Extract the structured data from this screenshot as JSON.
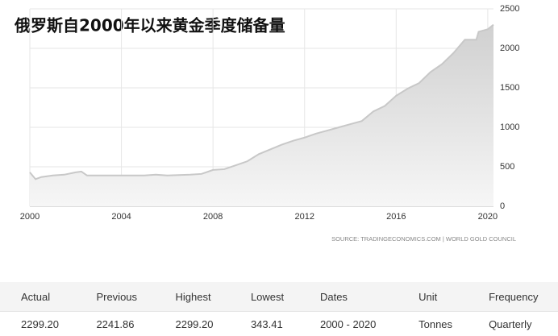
{
  "chart_data": {
    "type": "area",
    "title": "俄罗斯自2000年以来黄金季度储备量",
    "source": "SOURCE: TRADINGECONOMICS.COM | WORLD GOLD COUNCIL",
    "x": [
      2000,
      2000.25,
      2000.5,
      2001,
      2001.5,
      2002,
      2002.25,
      2002.5,
      2003,
      2004,
      2005,
      2005.5,
      2006,
      2007,
      2007.5,
      2008,
      2008.5,
      2009,
      2009.5,
      2010,
      2010.5,
      2011,
      2011.5,
      2012,
      2012.5,
      2013,
      2013.5,
      2014,
      2014.5,
      2015,
      2015.5,
      2016,
      2016.5,
      2017,
      2017.5,
      2018,
      2018.5,
      2019,
      2019.5,
      2019.6,
      2020,
      2020.25
    ],
    "series": [
      {
        "color": "#c8c8c8",
        "values": [
          430,
          343.41,
          370,
          390,
          400,
          430,
          440,
          390,
          390,
          390,
          390,
          400,
          390,
          400,
          410,
          460,
          470,
          520,
          570,
          660,
          720,
          780,
          830,
          870,
          920,
          960,
          1000,
          1040,
          1080,
          1200,
          1270,
          1400,
          1490,
          1560,
          1700,
          1800,
          1940,
          2110,
          2110,
          2210,
          2241.86,
          2299.2
        ]
      }
    ],
    "xlim": [
      2000,
      2020.25
    ],
    "xticks": [
      2000,
      2004,
      2008,
      2012,
      2016,
      2020
    ],
    "ylim": [
      0,
      2500
    ],
    "yticks": [
      0,
      500,
      1000,
      1500,
      2000,
      2500
    ],
    "grid": true
  },
  "table": {
    "header": [
      "Actual",
      "Previous",
      "Highest",
      "Lowest",
      "Dates",
      "Unit",
      "Frequency"
    ],
    "rows": [
      [
        "2299.20",
        "2241.86",
        "2299.20",
        "343.41",
        "2000 - 2020",
        "Tonnes",
        "Quarterly"
      ]
    ]
  }
}
